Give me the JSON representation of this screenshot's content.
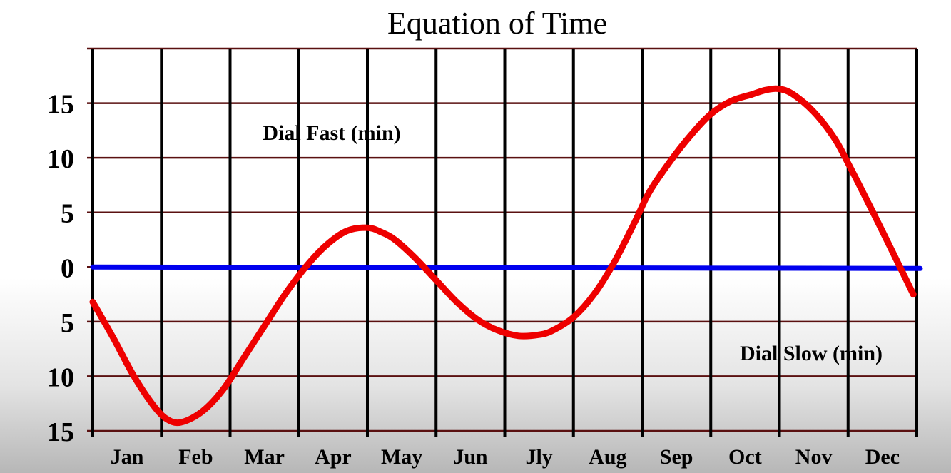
{
  "chart_data": {
    "type": "line",
    "title": "Equation of Time",
    "xlabel": "",
    "ylabel": "",
    "categories": [
      "Jan",
      "Feb",
      "Mar",
      "Apr",
      "May",
      "Jun",
      "Jly",
      "Aug",
      "Sep",
      "Oct",
      "Nov",
      "Dec"
    ],
    "ylim": [
      -15,
      20
    ],
    "y_ticks": [
      {
        "value": 15,
        "label": "15"
      },
      {
        "value": 10,
        "label": "10"
      },
      {
        "value": 5,
        "label": "5"
      },
      {
        "value": 0,
        "label": "0"
      },
      {
        "value": -5,
        "label": "5"
      },
      {
        "value": -10,
        "label": "10"
      },
      {
        "value": -15,
        "label": "15"
      }
    ],
    "grid": true,
    "annotations": {
      "fast": "Dial Fast (min)",
      "slow": "Dial Slow (min)"
    },
    "colors": {
      "curve": "#ee0000",
      "zero_line": "#0000ee",
      "vertical_grid": "#000000",
      "horizontal_grid": "#5a1010"
    },
    "series": [
      {
        "x": [
          0.0,
          0.3,
          0.6,
          0.9,
          1.1,
          1.3,
          1.6,
          1.9,
          2.2,
          2.5,
          2.8,
          3.1,
          3.4,
          3.7,
          4.0,
          4.2,
          4.4,
          4.7,
          5.0,
          5.3,
          5.6,
          5.9,
          6.2,
          6.5,
          6.7,
          7.0,
          7.3,
          7.6,
          7.9,
          8.1,
          8.4,
          8.7,
          9.0,
          9.3,
          9.6,
          9.8,
          10.0,
          10.2,
          10.5,
          10.8,
          11.0,
          11.3,
          11.6,
          11.95
        ],
        "y": [
          -3.2,
          -6.5,
          -10.0,
          -12.8,
          -14.0,
          -14.2,
          -13.2,
          -11.2,
          -8.3,
          -5.4,
          -2.5,
          0.0,
          2.0,
          3.3,
          3.6,
          3.2,
          2.5,
          0.8,
          -1.2,
          -3.2,
          -4.8,
          -5.8,
          -6.3,
          -6.2,
          -5.8,
          -4.6,
          -2.5,
          0.5,
          4.2,
          6.8,
          9.6,
          12.0,
          14.0,
          15.2,
          15.8,
          16.2,
          16.3,
          15.8,
          14.2,
          11.8,
          9.5,
          5.8,
          2.0,
          -2.5
        ]
      }
    ]
  }
}
